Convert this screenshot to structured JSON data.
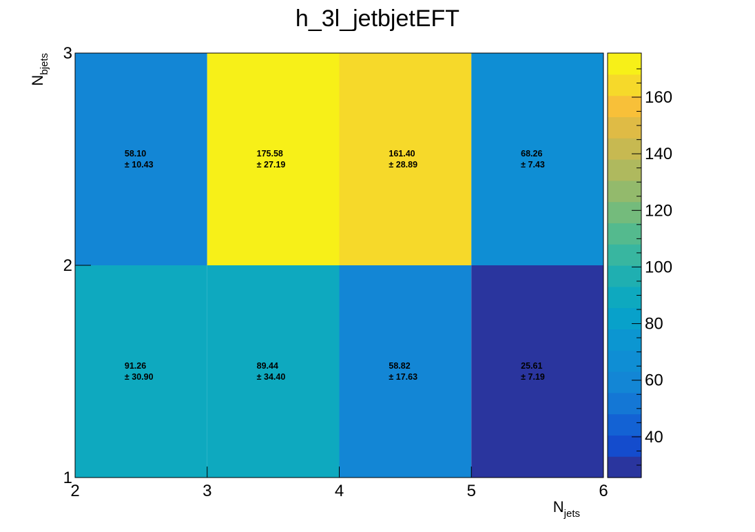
{
  "chart_data": {
    "type": "heatmap",
    "title": "h_3l_jetbjetEFT",
    "xlabel_main": "N",
    "xlabel_sub": "jets",
    "ylabel_main": "N",
    "ylabel_sub": "bjets",
    "x_edges": [
      2,
      3,
      4,
      5,
      6
    ],
    "y_edges": [
      1,
      2,
      3
    ],
    "x_tick_labels": [
      "2",
      "3",
      "4",
      "5",
      "6"
    ],
    "y_tick_labels": [
      "1",
      "2",
      "3"
    ],
    "xlim": [
      2,
      6
    ],
    "ylim": [
      1,
      3
    ],
    "zlim": [
      25.61,
      175.58
    ],
    "z_tick_labels": [
      "40",
      "60",
      "80",
      "100",
      "120",
      "140",
      "160"
    ],
    "z_ticks": [
      40,
      60,
      80,
      100,
      120,
      140,
      160
    ],
    "cells": [
      {
        "x": [
          2,
          3
        ],
        "y": [
          1,
          2
        ],
        "value": 91.26,
        "value_label": "91.26",
        "error_label": "± 30.90"
      },
      {
        "x": [
          3,
          4
        ],
        "y": [
          1,
          2
        ],
        "value": 89.44,
        "value_label": "89.44",
        "error_label": "± 34.40"
      },
      {
        "x": [
          4,
          5
        ],
        "y": [
          1,
          2
        ],
        "value": 58.82,
        "value_label": "58.82",
        "error_label": "± 17.63"
      },
      {
        "x": [
          5,
          6
        ],
        "y": [
          1,
          2
        ],
        "value": 25.61,
        "value_label": "25.61",
        "error_label": "± 7.19"
      },
      {
        "x": [
          2,
          3
        ],
        "y": [
          2,
          3
        ],
        "value": 58.1,
        "value_label": "58.10",
        "error_label": "± 10.43"
      },
      {
        "x": [
          3,
          4
        ],
        "y": [
          2,
          3
        ],
        "value": 175.58,
        "value_label": "175.58",
        "error_label": "± 27.19"
      },
      {
        "x": [
          4,
          5
        ],
        "y": [
          2,
          3
        ],
        "value": 161.4,
        "value_label": "161.40",
        "error_label": "± 28.89"
      },
      {
        "x": [
          5,
          6
        ],
        "y": [
          2,
          3
        ],
        "value": 68.26,
        "value_label": "68.26",
        "error_label": "± 7.43"
      }
    ],
    "colormap": "parula",
    "grid": false,
    "legend": "colorbar-right"
  }
}
